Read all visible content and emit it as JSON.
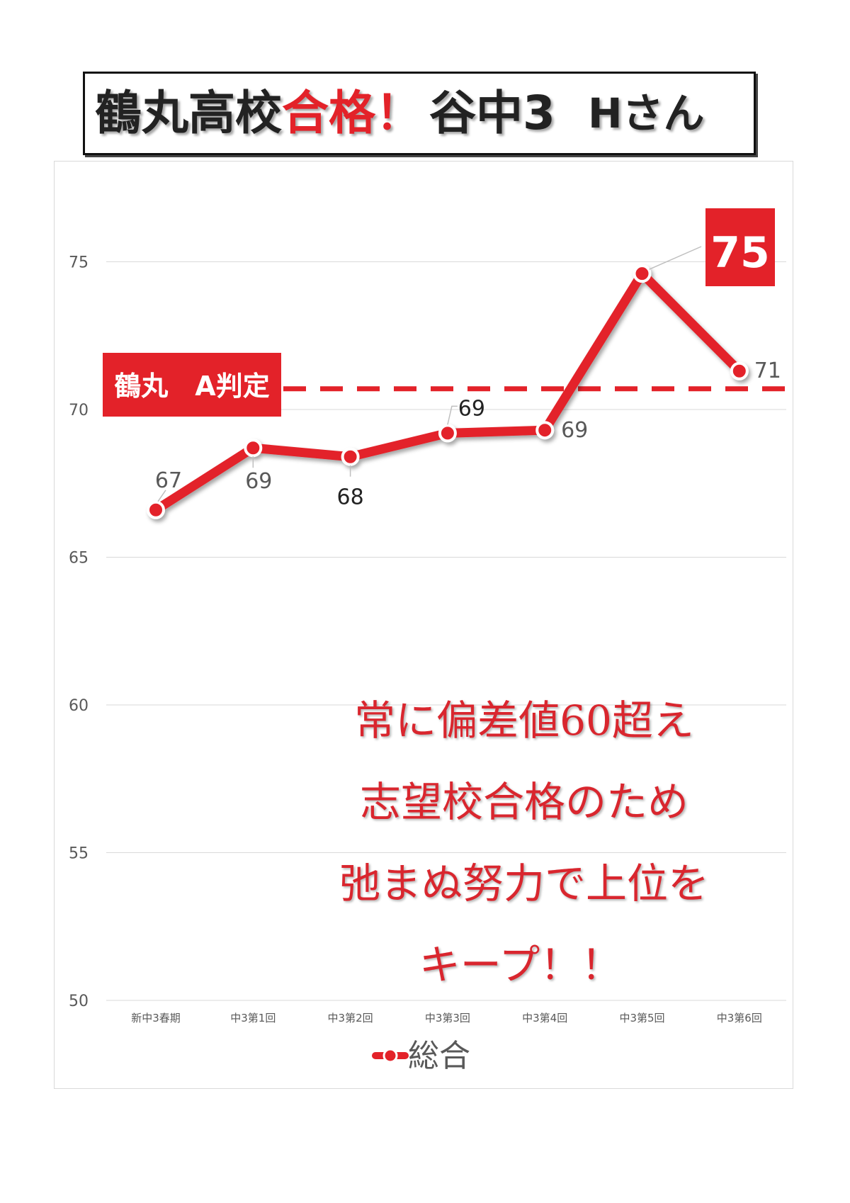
{
  "title": {
    "part1": "鶴丸高校",
    "part2": "合格！",
    "part3": "谷中3",
    "part4": "Hさん"
  },
  "chart_data": {
    "type": "line",
    "categories": [
      "新中3春期",
      "中3第1回",
      "中3第2回",
      "中3第3回",
      "中3第4回",
      "中3第5回",
      "中3第6回"
    ],
    "series": [
      {
        "name": "総合",
        "values": [
          66.6,
          68.7,
          68.4,
          69.2,
          69.3,
          74.6,
          71.3
        ],
        "labels": [
          "67",
          "69",
          "68",
          "69",
          "69",
          "75",
          "71"
        ]
      }
    ],
    "yticks": [
      50,
      55,
      60,
      65,
      70,
      75
    ],
    "ylim": [
      50,
      77
    ],
    "grid": true,
    "legend": "bottom",
    "threshold": {
      "value": 70.7,
      "label": "鶴丸　A判定"
    },
    "colors": {
      "line": "#e32229",
      "text": "#595959",
      "grid": "#d9d9d9"
    }
  },
  "message": {
    "lines": [
      "常に偏差値60超え",
      "志望校合格のため",
      "弛まぬ努力で上位を",
      "キープ！！"
    ]
  }
}
